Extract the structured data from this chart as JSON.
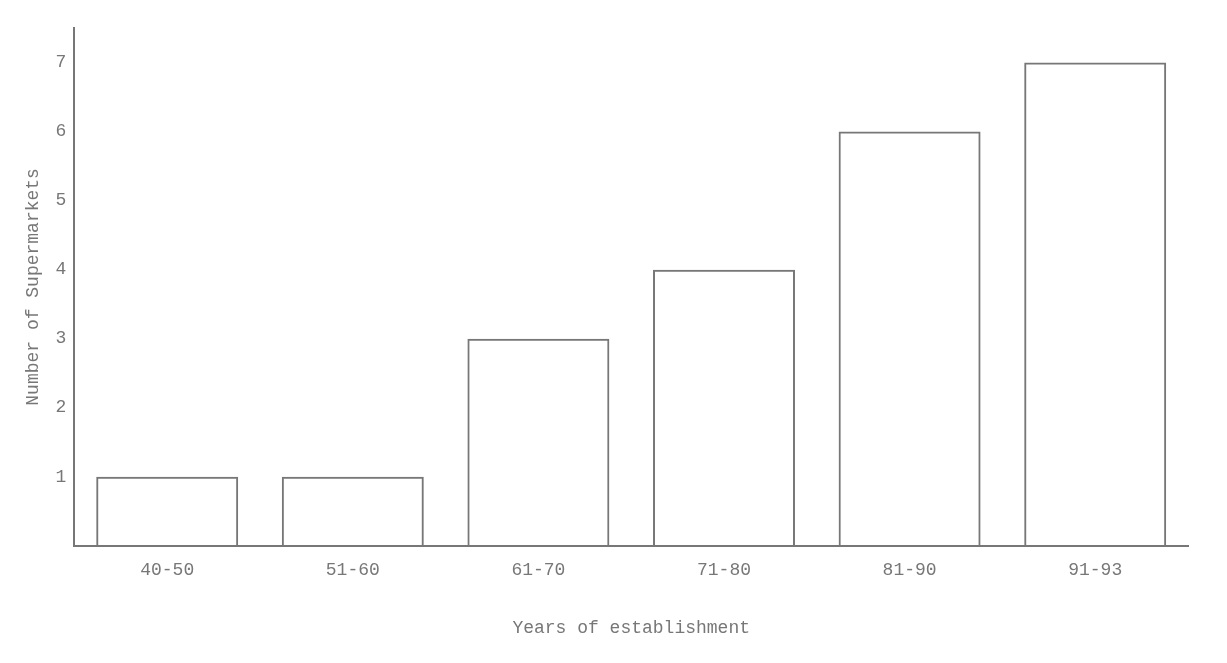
{
  "chart_data": {
    "type": "bar",
    "xlabel": "Years of establishment",
    "ylabel": "Number of Supermarkets",
    "categories": [
      "40-50",
      "51-60",
      "61-70",
      "71-80",
      "81-90",
      "91-93"
    ],
    "values": [
      1,
      1,
      3,
      4,
      6,
      7
    ],
    "color": "#777777",
    "ylim": [
      0,
      7.5
    ],
    "yticks": [
      1,
      2,
      3,
      4,
      5,
      6,
      7
    ],
    "grid": false,
    "legend": false
  }
}
